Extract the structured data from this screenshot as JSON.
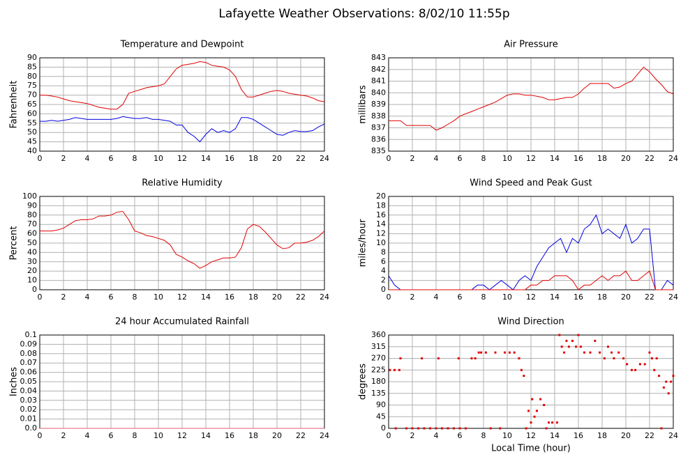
{
  "title": "Lafayette Weather Observations: 8/02/10 11:55p",
  "chart_data": [
    {
      "type": "line",
      "title": "Temperature and Dewpoint",
      "ylabel": "Fahrenheit",
      "x": [
        0,
        0.5,
        1,
        1.5,
        2,
        2.5,
        3,
        3.5,
        4,
        4.5,
        5,
        5.5,
        6,
        6.5,
        7,
        7.5,
        8,
        8.5,
        9,
        9.5,
        10,
        10.5,
        11,
        11.5,
        12,
        12.5,
        13,
        13.5,
        14,
        14.5,
        15,
        15.5,
        16,
        16.5,
        17,
        17.5,
        18,
        18.5,
        19,
        19.5,
        20,
        20.5,
        21,
        21.5,
        22,
        22.5,
        23,
        23.5,
        24
      ],
      "series": [
        {
          "color": "#e00000",
          "values": [
            70,
            70,
            69.5,
            69,
            68,
            67,
            66.5,
            66,
            65.5,
            64.5,
            63.5,
            63,
            62.5,
            62.5,
            65,
            71,
            72,
            73,
            74,
            74.5,
            75,
            76,
            80,
            84,
            86,
            86.5,
            87,
            88,
            87.5,
            86,
            85.5,
            85,
            83.5,
            80,
            73,
            69,
            69,
            70,
            71,
            72,
            72.5,
            72,
            71,
            70.5,
            70,
            69.5,
            68.5,
            67,
            66.5
          ]
        },
        {
          "color": "#0000e0",
          "values": [
            56,
            56,
            56.5,
            56,
            56.5,
            57,
            58,
            57.5,
            57,
            57,
            57,
            57,
            57,
            57.5,
            58.5,
            58,
            57.5,
            57.5,
            58,
            57,
            57,
            56.5,
            56,
            54,
            54,
            50,
            48,
            45,
            49,
            52,
            50,
            51,
            50,
            52,
            58,
            58,
            57,
            55,
            53,
            51,
            49,
            48.5,
            50,
            51,
            50.5,
            50.5,
            51,
            53,
            54.5
          ]
        }
      ],
      "xlim": [
        0,
        24
      ],
      "xticks": [
        0,
        2,
        4,
        6,
        8,
        10,
        12,
        14,
        16,
        18,
        20,
        22,
        24
      ],
      "ylim": [
        40,
        90
      ],
      "yticks": [
        40,
        45,
        50,
        55,
        60,
        65,
        70,
        75,
        80,
        85,
        90
      ],
      "grid": true
    },
    {
      "type": "line",
      "title": "Air Pressure",
      "ylabel": "millibars",
      "x": [
        0,
        0.5,
        1,
        1.5,
        2,
        2.5,
        3,
        3.5,
        4,
        4.5,
        5,
        5.5,
        6,
        6.5,
        7,
        7.5,
        8,
        8.5,
        9,
        9.5,
        10,
        10.5,
        11,
        11.5,
        12,
        12.5,
        13,
        13.5,
        14,
        14.5,
        15,
        15.5,
        16,
        16.5,
        17,
        17.5,
        18,
        18.5,
        19,
        19.5,
        20,
        20.5,
        21,
        21.5,
        22,
        22.5,
        23,
        23.5,
        24
      ],
      "series": [
        {
          "color": "#e00000",
          "values": [
            837.6,
            837.6,
            837.6,
            837.2,
            837.2,
            837.2,
            837.2,
            837.2,
            836.8,
            837,
            837.3,
            837.6,
            838,
            838.2,
            838.4,
            838.6,
            838.8,
            839,
            839.2,
            839.5,
            839.8,
            839.9,
            839.9,
            839.8,
            839.8,
            839.7,
            839.6,
            839.4,
            839.4,
            839.5,
            839.6,
            839.6,
            839.9,
            840.4,
            840.8,
            840.8,
            840.8,
            840.8,
            840.4,
            840.5,
            840.8,
            841,
            841.6,
            842.2,
            841.8,
            841.2,
            840.7,
            840.1,
            839.9
          ]
        }
      ],
      "xlim": [
        0,
        24
      ],
      "xticks": [
        0,
        2,
        4,
        6,
        8,
        10,
        12,
        14,
        16,
        18,
        20,
        22,
        24
      ],
      "ylim": [
        835,
        843
      ],
      "yticks": [
        835,
        836,
        837,
        838,
        839,
        840,
        841,
        842,
        843
      ],
      "grid": true
    },
    {
      "type": "line",
      "title": "Relative Humidity",
      "ylabel": "Percent",
      "x": [
        0,
        0.5,
        1,
        1.5,
        2,
        2.5,
        3,
        3.5,
        4,
        4.5,
        5,
        5.5,
        6,
        6.5,
        7,
        7.5,
        8,
        8.5,
        9,
        9.5,
        10,
        10.5,
        11,
        11.5,
        12,
        12.5,
        13,
        13.5,
        14,
        14.5,
        15,
        15.5,
        16,
        16.5,
        17,
        17.5,
        18,
        18.5,
        19,
        19.5,
        20,
        20.5,
        21,
        21.5,
        22,
        22.5,
        23,
        23.5,
        24
      ],
      "series": [
        {
          "color": "#e00000",
          "values": [
            63,
            63,
            63,
            64,
            66,
            70,
            74,
            75,
            75,
            76,
            79,
            79,
            80,
            83,
            84,
            75,
            63,
            61,
            58,
            57,
            55,
            53,
            48,
            38,
            35,
            31,
            28,
            23,
            26,
            30,
            32,
            34,
            34,
            35,
            45,
            65,
            70,
            68,
            62,
            55,
            48,
            44,
            45,
            50,
            50,
            51,
            53,
            57,
            63
          ]
        }
      ],
      "xlim": [
        0,
        24
      ],
      "xticks": [
        0,
        2,
        4,
        6,
        8,
        10,
        12,
        14,
        16,
        18,
        20,
        22,
        24
      ],
      "ylim": [
        0,
        100
      ],
      "yticks": [
        0,
        10,
        20,
        30,
        40,
        50,
        60,
        70,
        80,
        90,
        100
      ],
      "grid": true
    },
    {
      "type": "line",
      "title": "Wind Speed and Peak Gust",
      "ylabel": "miles/hour",
      "x": [
        0,
        0.5,
        1,
        1.5,
        2,
        2.5,
        3,
        3.5,
        4,
        4.5,
        5,
        5.5,
        6,
        6.5,
        7,
        7.5,
        8,
        8.5,
        9,
        9.5,
        10,
        10.5,
        11,
        11.5,
        12,
        12.5,
        13,
        13.5,
        14,
        14.5,
        15,
        15.5,
        16,
        16.5,
        17,
        17.5,
        18,
        18.5,
        19,
        19.5,
        20,
        20.5,
        21,
        21.5,
        22,
        22.5,
        23,
        23.5,
        24
      ],
      "series": [
        {
          "color": "#0000e0",
          "values": [
            3,
            1,
            0,
            0,
            0,
            0,
            0,
            0,
            0,
            0,
            0,
            0,
            0,
            0,
            0,
            1,
            1,
            0,
            1,
            2,
            1,
            0,
            2,
            3,
            2,
            5,
            7,
            9,
            10,
            11,
            8,
            11,
            10,
            13,
            14,
            16,
            12,
            13,
            12,
            11,
            14,
            10,
            11,
            13,
            13,
            0,
            0,
            2,
            1
          ]
        },
        {
          "color": "#e00000",
          "values": [
            0,
            0,
            0,
            0,
            0,
            0,
            0,
            0,
            0,
            0,
            0,
            0,
            0,
            0,
            0,
            0,
            0,
            0,
            0,
            0,
            0,
            0,
            0,
            0,
            1,
            1,
            2,
            2,
            3,
            3,
            3,
            2,
            0,
            1,
            1,
            2,
            3,
            2,
            3,
            3,
            4,
            2,
            2,
            3,
            4,
            0,
            0,
            0,
            0
          ]
        }
      ],
      "xlim": [
        0,
        24
      ],
      "xticks": [
        0,
        2,
        4,
        6,
        8,
        10,
        12,
        14,
        16,
        18,
        20,
        22,
        24
      ],
      "ylim": [
        0,
        20
      ],
      "yticks": [
        0,
        2,
        4,
        6,
        8,
        10,
        12,
        14,
        16,
        18,
        20
      ],
      "grid": true
    },
    {
      "type": "line",
      "title": "24 hour Accumulated Rainfall",
      "ylabel": "Inches",
      "x": [
        0,
        24
      ],
      "series": [
        {
          "color": "#e06070",
          "values": [
            0,
            0
          ]
        }
      ],
      "xlim": [
        0,
        24
      ],
      "xticks": [
        0,
        2,
        4,
        6,
        8,
        10,
        12,
        14,
        16,
        18,
        20,
        22,
        24
      ],
      "ylim": [
        0,
        0.1
      ],
      "yticks": [
        {
          "value": 0,
          "label": "0.0"
        },
        0.01,
        0.02,
        0.03,
        0.04,
        0.05,
        0.06,
        0.07,
        0.08,
        0.09,
        0.1
      ],
      "grid": true
    },
    {
      "type": "scatter",
      "title": "Wind Direction",
      "ylabel": "degrees",
      "xlabel": "Local Time (hour)",
      "x": [
        0.1,
        0.5,
        0.9,
        0.6,
        1.0,
        1.5,
        2.0,
        2.5,
        2.8,
        3.0,
        3.5,
        4.0,
        4.2,
        4.5,
        5.0,
        5.5,
        5.9,
        6.0,
        6.5,
        7.0,
        7.3,
        7.6,
        7.8,
        8.2,
        8.6,
        9.0,
        9.4,
        9.8,
        10.2,
        10.6,
        11.0,
        11.2,
        11.4,
        11.6,
        11.8,
        12.0,
        12.1,
        12.3,
        12.5,
        12.8,
        13.1,
        13.3,
        13.5,
        13.8,
        14.2,
        14.4,
        14.6,
        14.8,
        15.0,
        15.2,
        15.5,
        15.8,
        16.0,
        16.2,
        16.5,
        17.0,
        17.4,
        17.8,
        18.2,
        18.5,
        18.8,
        19.0,
        19.4,
        19.8,
        20.1,
        20.5,
        20.8,
        21.2,
        21.6,
        22.0,
        22.2,
        22.4,
        22.6,
        22.8,
        23.0,
        23.2,
        23.4,
        23.6,
        23.8,
        24.0
      ],
      "series": [
        {
          "color": "#e00000",
          "values": [
            225,
            225,
            225,
            0,
            270,
            0,
            0,
            0,
            270,
            0,
            0,
            0,
            270,
            0,
            0,
            0,
            270,
            0,
            0,
            270,
            270,
            292.5,
            292.5,
            292.5,
            0,
            292.5,
            0,
            292.5,
            292.5,
            292.5,
            270,
            225,
            202.5,
            0,
            67.5,
            22.5,
            112.5,
            45,
            67.5,
            112.5,
            90,
            0,
            22.5,
            22.5,
            22.5,
            360,
            315,
            292.5,
            337.5,
            315,
            337.5,
            315,
            360,
            315,
            292.5,
            292.5,
            337.5,
            292.5,
            270,
            315,
            292.5,
            270,
            292.5,
            270,
            247.5,
            225,
            225,
            247.5,
            247.5,
            292.5,
            270,
            225,
            270,
            202.5,
            0,
            157.5,
            180,
            135,
            180,
            202.5
          ]
        }
      ],
      "xlim": [
        0,
        24
      ],
      "xticks": [
        0,
        2,
        4,
        6,
        8,
        10,
        12,
        14,
        16,
        18,
        20,
        22,
        24
      ],
      "ylim": [
        0,
        360
      ],
      "yticks": [
        0,
        45,
        90,
        135,
        180,
        225,
        270,
        315,
        360
      ],
      "grid": true
    }
  ]
}
